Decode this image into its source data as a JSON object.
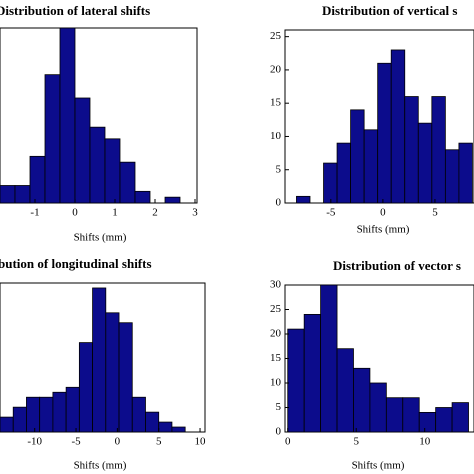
{
  "chart_data": [
    {
      "type": "histogram",
      "title": "Distribution of lateral shifts",
      "x_label": "Shifts (mm)",
      "bins": [
        -1.875,
        -1.5,
        -1.125,
        -0.75,
        -0.375,
        0,
        0.375,
        0.75,
        1.125,
        1.5,
        1.875,
        2.25,
        2.625,
        3.0
      ],
      "values": [
        3,
        3,
        8,
        22,
        30,
        18,
        13,
        11,
        7,
        2,
        0,
        1,
        0
      ],
      "color": "#0c0c8c",
      "xlim": [
        -1.875,
        3.05
      ],
      "ylim": [
        0,
        30
      ],
      "xticks": [
        -1,
        0,
        1,
        2,
        3
      ],
      "yticks": []
    },
    {
      "type": "histogram",
      "title": "Distribution of  vertical s",
      "x_label": "Shifts (mm)",
      "bins": [
        -8.3,
        -7.0,
        -5.7,
        -4.4,
        -3.1,
        -1.8,
        -0.5,
        0.8,
        2.1,
        3.4,
        4.7,
        6.0,
        7.3,
        8.6
      ],
      "values": [
        1,
        0,
        6,
        9,
        14,
        11,
        21,
        23,
        16,
        12,
        16,
        8,
        9
      ],
      "color": "#0c0c8c",
      "xlim": [
        -9.4,
        8.75
      ],
      "ylim": [
        0,
        26
      ],
      "xticks": [
        -5,
        0,
        5
      ],
      "yticks": [
        0,
        5,
        10,
        15,
        20,
        25
      ]
    },
    {
      "type": "histogram",
      "title": "bution of longitudinal shifts",
      "x_label": "Shifts (mm)",
      "bins": [
        -14.2,
        -12.6,
        -11.0,
        -9.4,
        -7.8,
        -6.2,
        -4.6,
        -3.0,
        -1.4,
        0.2,
        1.8,
        3.4,
        5.0,
        6.6,
        8.2
      ],
      "values": [
        3,
        5,
        7,
        7,
        8,
        9,
        18,
        29,
        24,
        22,
        7,
        4,
        2,
        1
      ],
      "color": "#0c0c8c",
      "xlim": [
        -14.2,
        10.6
      ],
      "ylim": [
        0,
        30
      ],
      "xticks": [
        -10,
        -5,
        0,
        5,
        10
      ],
      "yticks": []
    },
    {
      "type": "histogram",
      "title": "Distribution of vector s",
      "x_label": "Shifts (mm)",
      "bins": [
        0,
        1.2,
        2.4,
        3.6,
        4.8,
        6.0,
        7.2,
        8.4,
        9.6,
        10.8,
        12.0,
        13.2
      ],
      "values": [
        21,
        24,
        30,
        17,
        13,
        10,
        7,
        7,
        4,
        5,
        6
      ],
      "color": "#0c0c8c",
      "xlim": [
        -0.2,
        13.6
      ],
      "ylim": [
        0,
        30
      ],
      "xticks": [
        0,
        5,
        10
      ],
      "yticks": [
        0,
        5,
        10,
        15,
        20,
        25,
        30
      ]
    }
  ]
}
